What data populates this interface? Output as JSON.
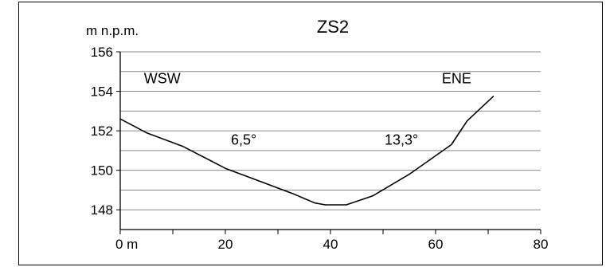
{
  "chart_data": {
    "type": "line",
    "title": "ZS2",
    "ylabel": "m n.p.m.",
    "xlabel": "",
    "xlim": [
      0,
      80
    ],
    "ylim": [
      147,
      156
    ],
    "x_ticks": [
      0,
      20,
      40,
      60,
      80
    ],
    "x_tick_labels": [
      "0 m",
      "20",
      "40",
      "60",
      "80"
    ],
    "x_minor_ticks": [
      10,
      30,
      50,
      70
    ],
    "y_ticks": [
      148,
      150,
      152,
      154,
      156
    ],
    "y_tick_labels": [
      "148",
      "150",
      "152",
      "154",
      "156"
    ],
    "y_grid": [
      148,
      149,
      150,
      151,
      152,
      153,
      154,
      155,
      156
    ],
    "grid": "horizontal",
    "series": [
      {
        "x": [
          0,
          5,
          12,
          20,
          27,
          33,
          37,
          39,
          43,
          48,
          55,
          63,
          66,
          71
        ],
        "y": [
          152.6,
          151.9,
          151.2,
          150.1,
          149.4,
          148.8,
          148.35,
          148.25,
          148.25,
          148.7,
          149.8,
          151.3,
          152.5,
          153.75
        ]
      }
    ],
    "annotations": [
      {
        "text": "WSW",
        "x": 8,
        "y": 154.4
      },
      {
        "text": "ENE",
        "x": 64,
        "y": 154.4
      },
      {
        "text": "6,5°",
        "x": 23.5,
        "y": 151.3
      },
      {
        "text": "13,3°",
        "x": 53.5,
        "y": 151.3
      }
    ]
  }
}
